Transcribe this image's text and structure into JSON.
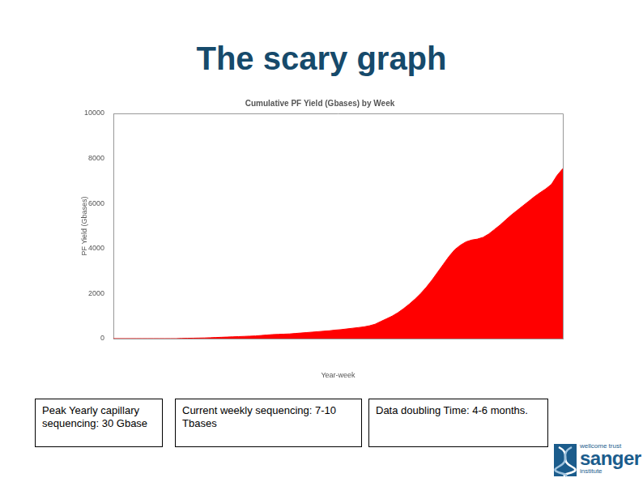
{
  "title": "The scary graph",
  "chart_data": {
    "type": "area",
    "title": "Cumulative PF Yield (Gbases) by Week",
    "x_label": "Year-week",
    "y_label": "PF Yield (Gbases)",
    "categories": [
      null,
      null,
      null,
      null,
      null,
      null,
      null,
      null,
      null,
      null,
      null,
      null,
      null,
      null,
      null,
      null,
      null,
      null,
      null,
      null,
      null,
      null,
      null,
      null,
      null,
      null,
      null,
      null,
      null,
      null,
      null,
      null,
      null,
      null,
      null,
      null,
      null,
      null,
      null,
      null,
      null,
      null,
      null,
      null,
      null,
      null,
      null,
      null,
      null,
      null,
      null,
      null,
      null,
      null,
      null,
      null,
      null,
      null,
      null,
      null,
      null,
      null,
      null,
      null,
      null,
      null,
      null,
      null,
      null,
      null,
      null,
      null,
      null,
      null,
      null,
      null,
      null,
      null,
      null,
      null
    ],
    "values": [
      0,
      0,
      0,
      0,
      0,
      0,
      0,
      0,
      0,
      0,
      0,
      0,
      10,
      15,
      20,
      25,
      30,
      40,
      50,
      60,
      70,
      80,
      90,
      100,
      110,
      120,
      140,
      160,
      180,
      190,
      200,
      210,
      230,
      250,
      270,
      290,
      310,
      330,
      350,
      380,
      400,
      430,
      460,
      490,
      520,
      570,
      640,
      760,
      880,
      1000,
      1150,
      1330,
      1530,
      1750,
      2000,
      2280,
      2600,
      2950,
      3300,
      3650,
      3950,
      4150,
      4300,
      4380,
      4420,
      4500,
      4650,
      4850,
      5050,
      5280,
      5500,
      5700,
      5900,
      6100,
      6300,
      6480,
      6650,
      6850,
      7250,
      7550
    ],
    "color": "#ff0000",
    "ylim": [
      0,
      10000
    ],
    "yticks": [
      0,
      2000,
      4000,
      6000,
      8000,
      10000
    ],
    "grid": false,
    "tick_labels": "y"
  },
  "boxes": [
    "Peak Yearly capillary sequencing: 30 Gbase",
    "Current weekly sequencing: 7-10 Tbases",
    "Data doubling Time: 4-6 months."
  ],
  "logo": [
    "wellcome trust",
    "sanger",
    "institute"
  ]
}
